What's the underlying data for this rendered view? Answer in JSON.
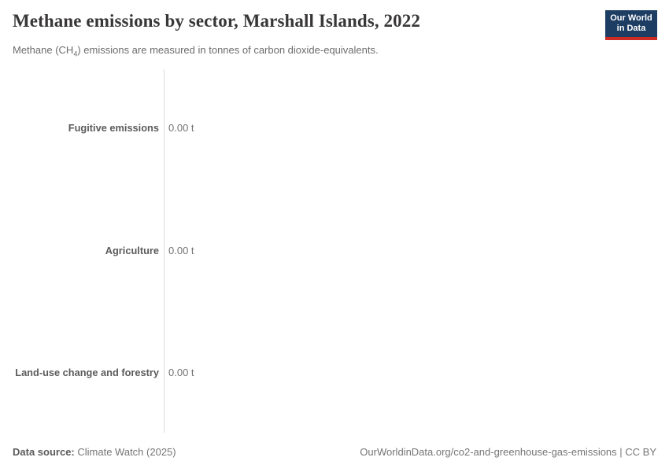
{
  "header": {
    "title": "Methane emissions by sector, Marshall Islands, 2022",
    "subtitle_prefix": "Methane (CH",
    "subtitle_sub": "4",
    "subtitle_suffix": ") emissions are measured in tonnes of carbon dioxide-equivalents.",
    "logo": {
      "line1": "Our World",
      "line2": "in Data"
    }
  },
  "chart_data": {
    "type": "bar",
    "orientation": "horizontal",
    "title": "Methane emissions by sector, Marshall Islands, 2022",
    "unit": "tonnes of CO2-equivalents",
    "categories": [
      "Fugitive emissions",
      "Agriculture",
      "Land-use change and forestry"
    ],
    "values": [
      0,
      0,
      0
    ],
    "value_labels": [
      "0.00 t",
      "0.00 t",
      "0.00 t"
    ],
    "xlim": [
      0,
      0
    ],
    "grid": false,
    "legend": "none"
  },
  "footer": {
    "source_label": "Data source:",
    "source_value": "Climate Watch (2025)",
    "license": "OurWorldinData.org/co2-and-greenhouse-gas-emissions | CC BY"
  },
  "colors": {
    "logo_bg": "#1d3d63",
    "logo_stripe": "#cc2c24",
    "axis_line": "#dcdcdc",
    "title_text": "#383636",
    "subtitle_text": "#6c6c6c",
    "category_text": "#5b5b5b",
    "value_text": "#737373"
  }
}
